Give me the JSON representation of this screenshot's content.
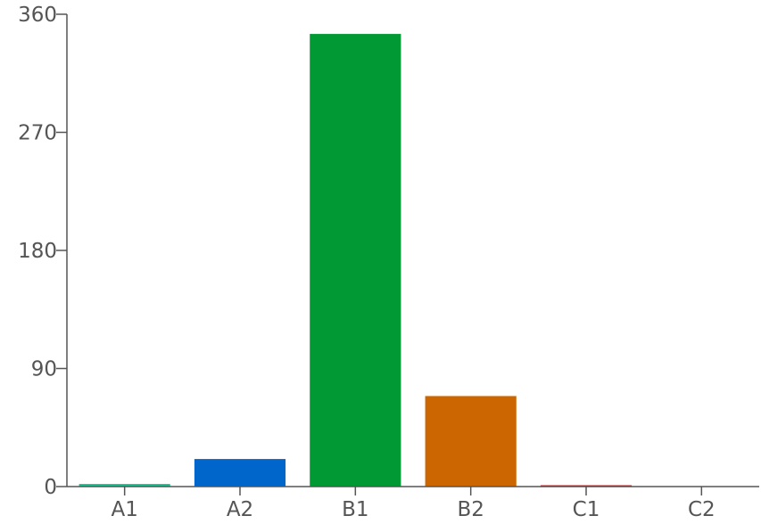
{
  "chart_data": {
    "type": "bar",
    "categories": [
      "A1",
      "A2",
      "B1",
      "B2",
      "C1",
      "C2"
    ],
    "values": [
      2,
      21,
      345,
      69,
      1,
      0
    ],
    "colors": [
      "#1fbf8f",
      "#0066cc",
      "#009933",
      "#cc6600",
      "#bb1111",
      "#888888"
    ],
    "title": "",
    "xlabel": "",
    "ylabel": "",
    "ylim": [
      0,
      360
    ],
    "yticks": [
      0,
      90,
      180,
      270,
      360
    ],
    "grid": false,
    "legend": "none"
  }
}
